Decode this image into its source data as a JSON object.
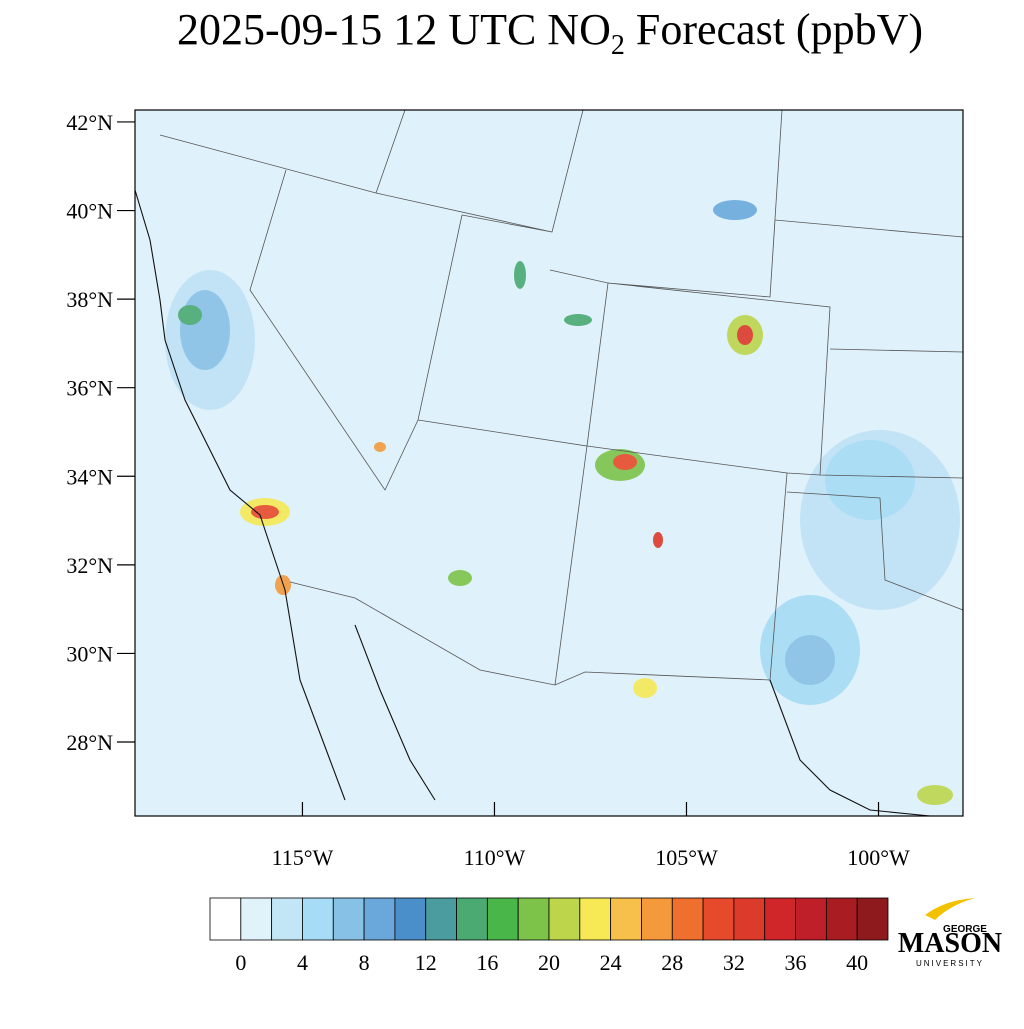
{
  "title_parts": [
    "2025-09-15 12 UTC NO",
    "2",
    " Forecast (ppbV)"
  ],
  "map": {
    "latlim": [
      26.33,
      42.27
    ],
    "lonlim": [
      -119.36,
      -97.8
    ],
    "lat_ticks": [
      {
        "value": 42,
        "label": "42°N"
      },
      {
        "value": 40,
        "label": "40°N"
      },
      {
        "value": 38,
        "label": "38°N"
      },
      {
        "value": 36,
        "label": "36°N"
      },
      {
        "value": 34,
        "label": "34°N"
      },
      {
        "value": 32,
        "label": "32°N"
      },
      {
        "value": 30,
        "label": "30°N"
      },
      {
        "value": 28,
        "label": "28°N"
      }
    ],
    "lon_ticks": [
      {
        "value": -115,
        "label": "115°W"
      },
      {
        "value": -110,
        "label": "110°W"
      },
      {
        "value": -105,
        "label": "105°W"
      },
      {
        "value": -100,
        "label": "100°W"
      }
    ]
  },
  "colorbar": {
    "colors": [
      "#ffffff",
      "#e0f3fb",
      "#c3e6f7",
      "#a6dcf5",
      "#88c1e6",
      "#6aa8dc",
      "#4b8fca",
      "#4a9c9e",
      "#4aaa72",
      "#49b649",
      "#7dc34a",
      "#bcd54b",
      "#f6e955",
      "#f7c04a",
      "#f49a3c",
      "#ef6f2e",
      "#e74a2a",
      "#dc3a2a",
      "#d0262a",
      "#bf1f29",
      "#a81c22",
      "#8e1a1e"
    ],
    "ticks": [
      0,
      4,
      8,
      12,
      16,
      20,
      24,
      28,
      32,
      36,
      40
    ]
  },
  "logo": {
    "top": "GEORGE",
    "main": "MASON",
    "bottom": "UNIVERSITY"
  }
}
